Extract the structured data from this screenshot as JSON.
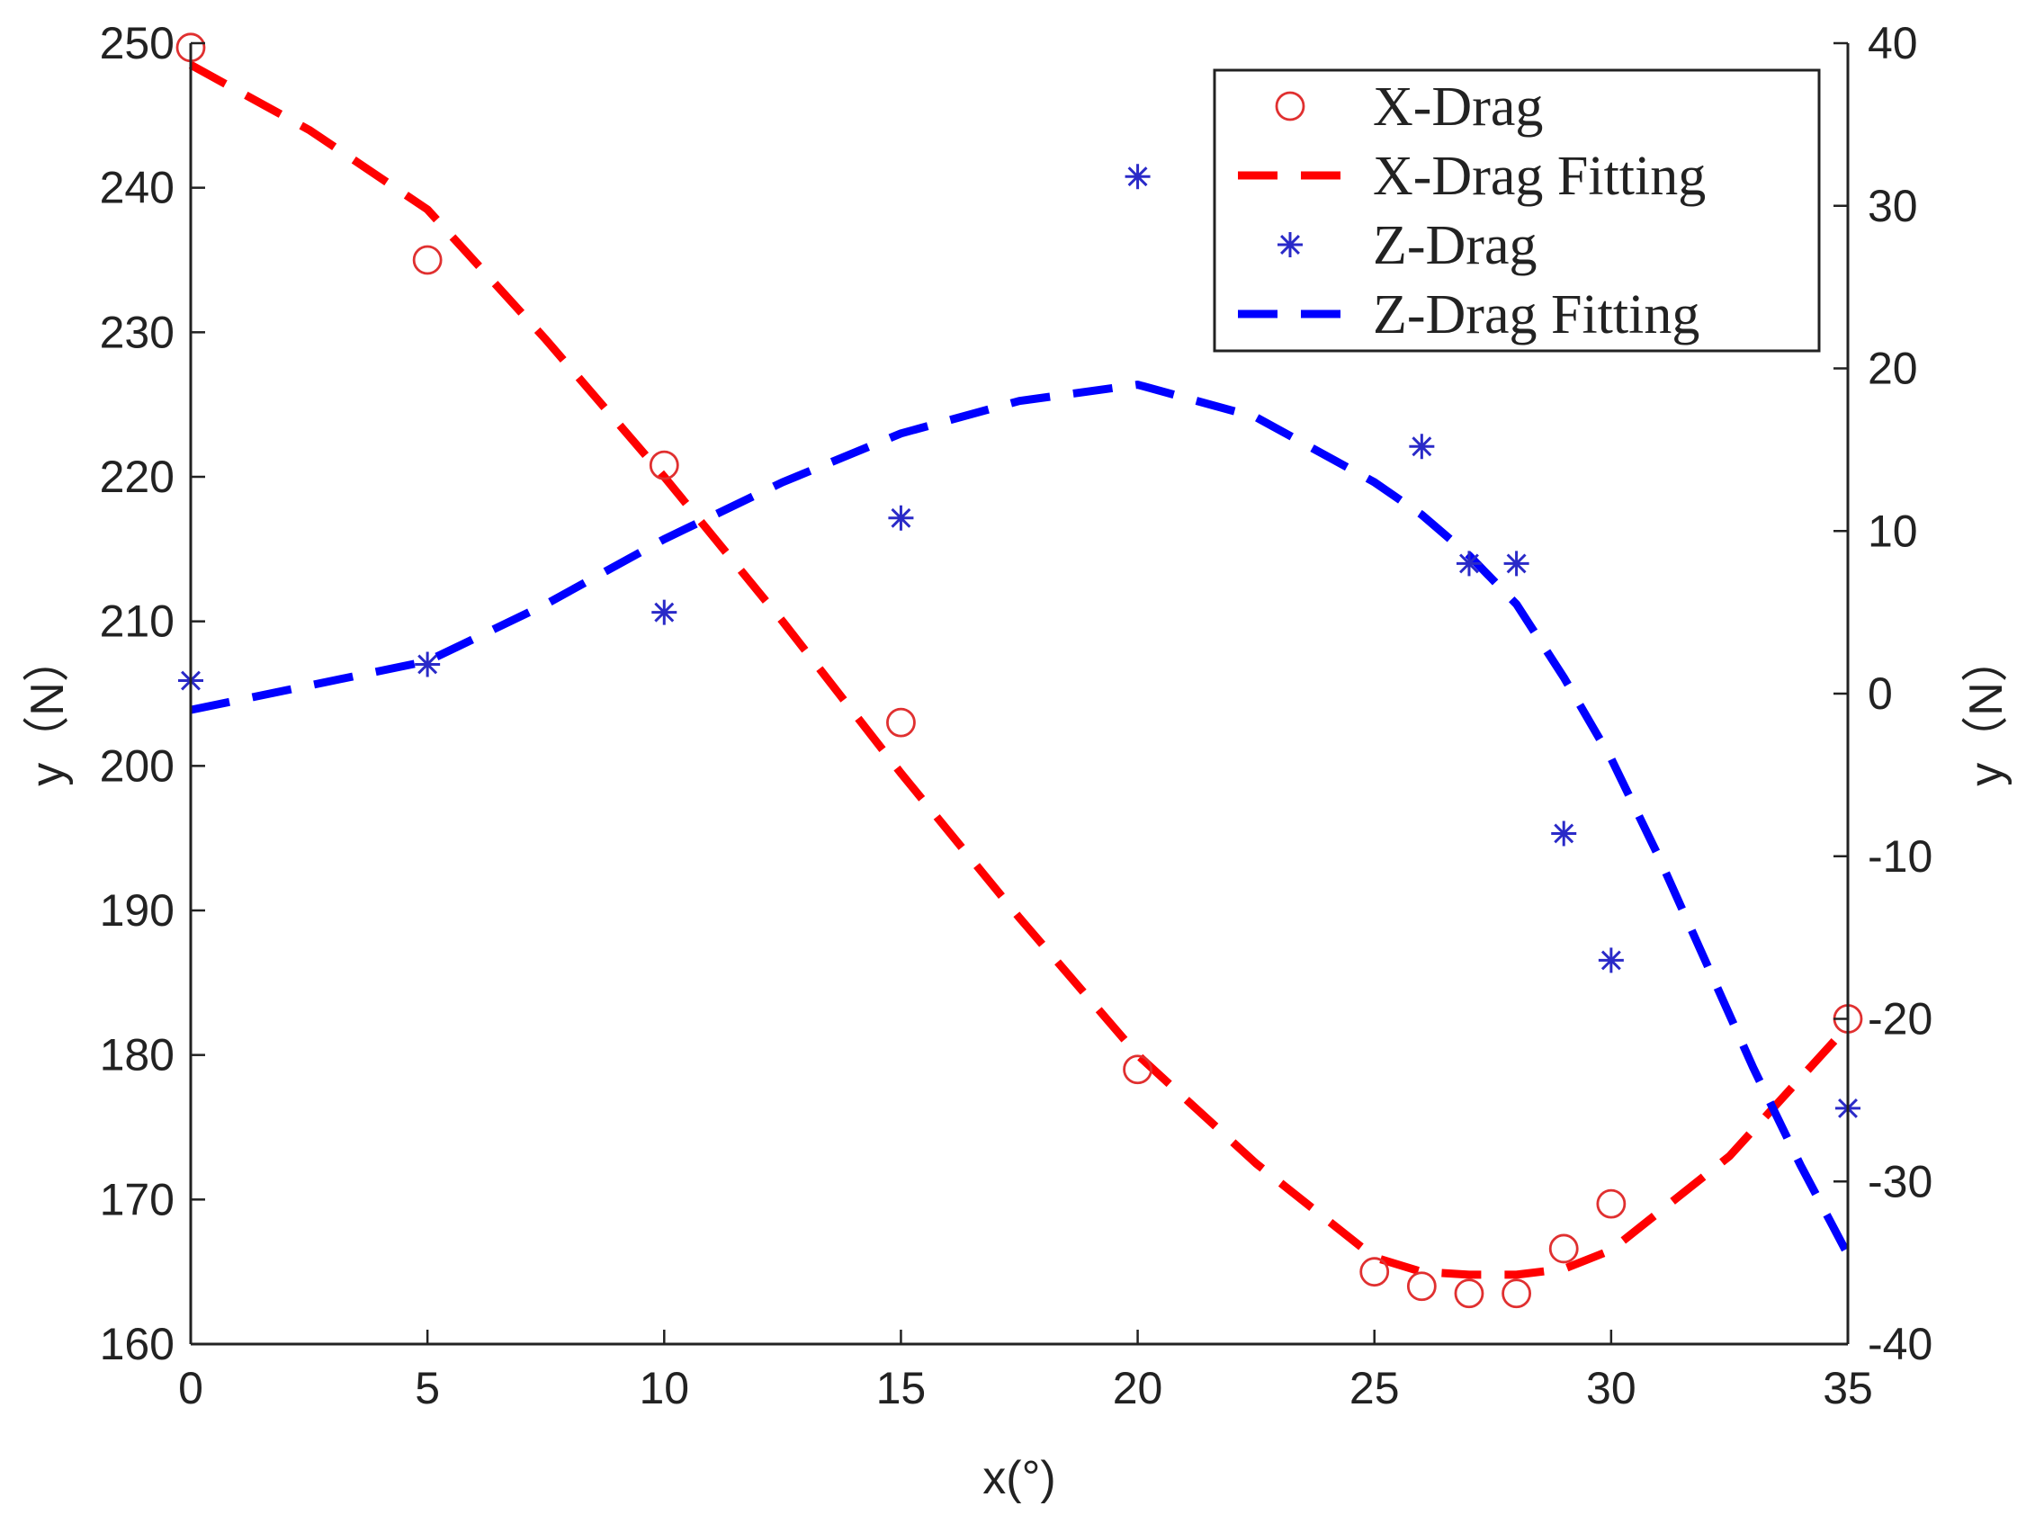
{
  "chart_data": {
    "type": "line",
    "title": "",
    "xlabel": "x(°)",
    "ylabel_left": "y（N）",
    "ylabel_right": "y（N）",
    "xlim": [
      0,
      35
    ],
    "ylim_left": [
      160,
      250
    ],
    "ylim_right": [
      -40,
      40
    ],
    "grid": false,
    "legend_position": "top-right",
    "x_ticks": [
      0,
      5,
      10,
      15,
      20,
      25,
      30,
      35
    ],
    "y_ticks_left": [
      160,
      170,
      180,
      190,
      200,
      210,
      220,
      230,
      240,
      250
    ],
    "y_ticks_right": [
      -40,
      -30,
      -20,
      -10,
      0,
      10,
      20,
      30,
      40
    ],
    "series": [
      {
        "name": "X-Drag",
        "axis": "left",
        "style": "markers",
        "marker": "circle",
        "color": "#e03030",
        "x": [
          0,
          5,
          10,
          15,
          20,
          25,
          26,
          27,
          28,
          29,
          30,
          35
        ],
        "y": [
          249.7,
          235,
          220.8,
          203,
          179,
          165,
          164,
          163.5,
          163.5,
          166.6,
          169.7,
          182.5
        ]
      },
      {
        "name": "X-Drag Fitting",
        "axis": "left",
        "style": "dashed",
        "color": "#ff0000",
        "x": [
          0,
          2.5,
          5,
          7.5,
          10,
          12.5,
          15,
          17.5,
          20,
          22.5,
          25,
          26,
          27,
          28,
          29,
          30,
          32.5,
          35
        ],
        "y": [
          248.5,
          244,
          238.5,
          229.5,
          220,
          210,
          199.5,
          189.5,
          180,
          172.5,
          166,
          165,
          164.8,
          164.8,
          165.2,
          166.5,
          173,
          182
        ]
      },
      {
        "name": "Z-Drag",
        "axis": "right",
        "style": "markers",
        "marker": "star",
        "color": "#2a2ac8",
        "x": [
          0,
          5,
          10,
          15,
          20,
          26,
          27,
          28,
          29,
          30,
          35
        ],
        "y": [
          0.8,
          1.8,
          5,
          10.8,
          31.8,
          15.2,
          8,
          8,
          -8.6,
          -16.4,
          -25.5
        ]
      },
      {
        "name": "Z-Drag Fitting",
        "axis": "right",
        "style": "dashed",
        "color": "#0000ff",
        "x": [
          0,
          2.5,
          5,
          7.5,
          10,
          12.5,
          15,
          17.5,
          20,
          22.5,
          25,
          26,
          27,
          28,
          29,
          30,
          31,
          32,
          33,
          34,
          35
        ],
        "y": [
          -1,
          0.5,
          2,
          5.5,
          9.5,
          13,
          16,
          18,
          19,
          17,
          13,
          11,
          8.5,
          5.5,
          1,
          -4,
          -10,
          -16.5,
          -23,
          -29,
          -34.5
        ]
      }
    ]
  }
}
